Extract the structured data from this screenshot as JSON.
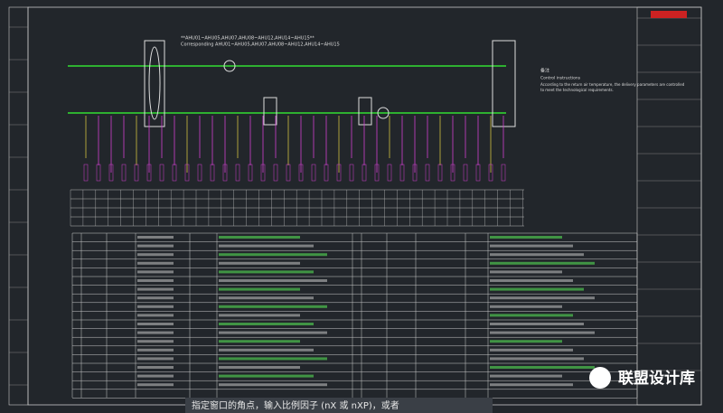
{
  "drawing": {
    "top_note": "**AHU01~AHU05,AHU07,AHU08~AHU12,AHU14~AHU15**",
    "top_note_2": "Corresponding AHU01~AHU05,AHU07,AHU08~AHU12,AHU14~AHU15",
    "notes_title": "备注",
    "notes_subtitle": "Control instructions",
    "notes_body": [
      "According to the return air temperature, the delivery parameters are controlled",
      "to meet the technological requirements."
    ]
  },
  "watermark": "联盟设计库",
  "command_line": "指定窗口的角点，输入比例因子 (nX 或 nXP)，或者"
}
